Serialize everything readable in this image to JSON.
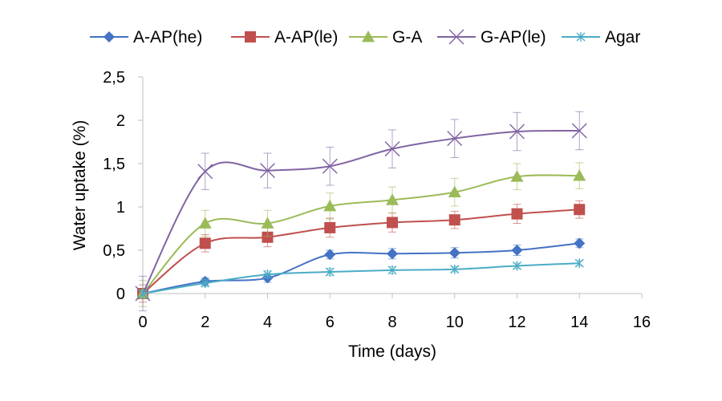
{
  "chart_data": {
    "type": "line",
    "title": "",
    "xlabel": "Time (days)",
    "ylabel": "Water uptake (%)",
    "xlim": [
      0,
      16
    ],
    "ylim": [
      0,
      2.5
    ],
    "x_ticks": [
      "0",
      "2",
      "4",
      "6",
      "8",
      "10",
      "12",
      "14",
      "16"
    ],
    "y_ticks": [
      "0",
      "0,5",
      "1",
      "1,5",
      "2",
      "2,5"
    ],
    "grid": false,
    "legend_position": "top",
    "x": [
      0,
      2,
      4,
      6,
      8,
      10,
      12,
      14
    ],
    "series": [
      {
        "name": "A-AP(he)",
        "color": "#4472c4",
        "marker": "diamond",
        "values": [
          0,
          0.14,
          0.18,
          0.45,
          0.46,
          0.47,
          0.5,
          0.58
        ],
        "errors": [
          0.03,
          0.04,
          0.05,
          0.05,
          0.06,
          0.06,
          0.06,
          0.05
        ]
      },
      {
        "name": "A-AP(le)",
        "color": "#c0504d",
        "marker": "square",
        "values": [
          0,
          0.58,
          0.65,
          0.76,
          0.82,
          0.85,
          0.92,
          0.97
        ],
        "errors": [
          0.1,
          0.1,
          0.11,
          0.11,
          0.11,
          0.1,
          0.11,
          0.1
        ]
      },
      {
        "name": "G-A",
        "color": "#9bbb59",
        "marker": "triangle",
        "values": [
          0,
          0.81,
          0.81,
          1.01,
          1.08,
          1.17,
          1.35,
          1.36
        ],
        "errors": [
          0.15,
          0.15,
          0.15,
          0.15,
          0.15,
          0.16,
          0.15,
          0.15
        ]
      },
      {
        "name": "G-AP(le)",
        "color": "#8064a2",
        "marker": "x",
        "values": [
          0,
          1.41,
          1.42,
          1.47,
          1.67,
          1.79,
          1.87,
          1.88
        ],
        "errors": [
          0.2,
          0.21,
          0.2,
          0.22,
          0.22,
          0.22,
          0.22,
          0.22
        ]
      },
      {
        "name": "Agar",
        "color": "#4bacc6",
        "marker": "star",
        "values": [
          0,
          0.12,
          0.22,
          0.25,
          0.27,
          0.28,
          0.32,
          0.35
        ],
        "errors": [
          0.03,
          0.04,
          0.04,
          0.04,
          0.04,
          0.03,
          0.03,
          0.03
        ]
      }
    ]
  }
}
